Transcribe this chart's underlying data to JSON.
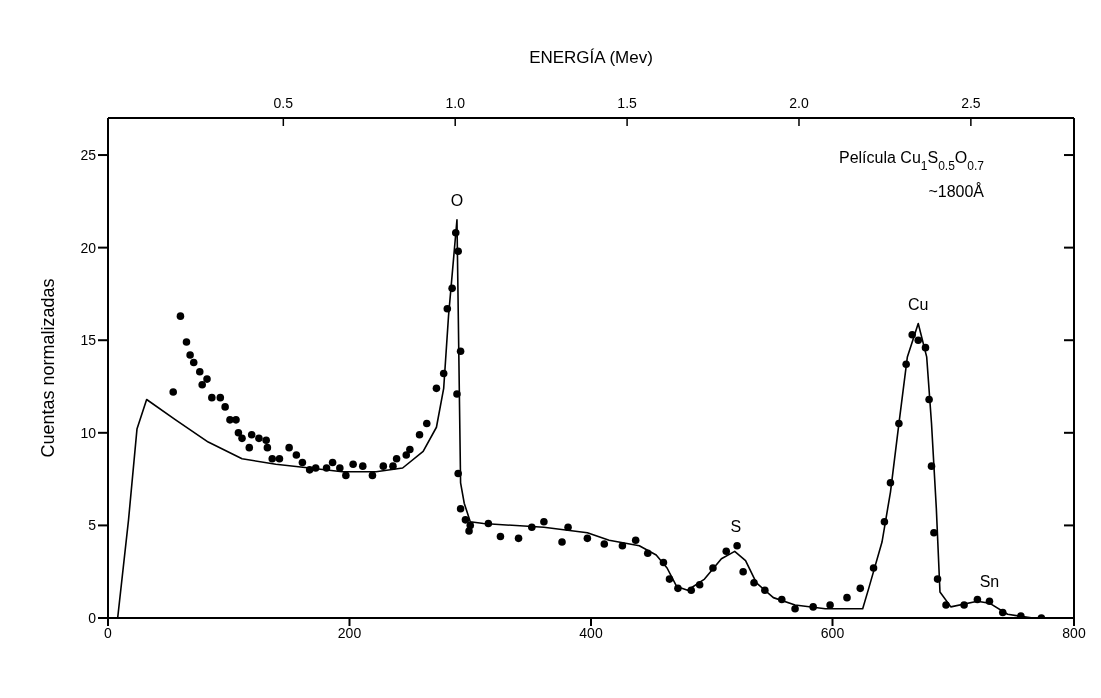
{
  "chart_data": {
    "type": "scatter",
    "ylabel": "Cuentas normalizadas",
    "x2label": "ENERGÍA (Mev)",
    "xlim": [
      0,
      800
    ],
    "xticks": [
      0,
      200,
      400,
      600,
      800
    ],
    "x2lim": [
      -0.01,
      2.8
    ],
    "x2ticks": [
      {
        "value": 0.5,
        "label": "0.5"
      },
      {
        "value": 1.0,
        "label": "1.0"
      },
      {
        "value": 1.5,
        "label": "1.5"
      },
      {
        "value": 2.0,
        "label": "2.0"
      },
      {
        "value": 2.5,
        "label": "2.5"
      }
    ],
    "ylim": [
      0,
      27
    ],
    "yticks": [
      0,
      5,
      10,
      15,
      20,
      25
    ],
    "series": [
      {
        "color": "#000000",
        "marker": "circle",
        "x": [
          54,
          60,
          65,
          68,
          71,
          76,
          78,
          82,
          86,
          93,
          97,
          101,
          106,
          108,
          111,
          117,
          119,
          125,
          131,
          132,
          136,
          142,
          150,
          156,
          161,
          167,
          172,
          181,
          186,
          192,
          197,
          203,
          211,
          219,
          228,
          236,
          239,
          247,
          250,
          258,
          264,
          272,
          278,
          281,
          285,
          288,
          289,
          290,
          292,
          290,
          292,
          296,
          299,
          300,
          315,
          325,
          340,
          351,
          361,
          376,
          381,
          397,
          411,
          426,
          437,
          447,
          460,
          465,
          472,
          483,
          490,
          501,
          512,
          521,
          526,
          535,
          544,
          558,
          569,
          584,
          598,
          612,
          623,
          634,
          643,
          648,
          655,
          661,
          666,
          671,
          677,
          680,
          682,
          684,
          687,
          694,
          709,
          720,
          730,
          741,
          756,
          773
        ],
        "values": [
          12.2,
          16.3,
          14.9,
          14.2,
          13.8,
          13.3,
          12.6,
          12.9,
          11.9,
          11.9,
          11.4,
          10.7,
          10.7,
          10.0,
          9.7,
          9.2,
          9.9,
          9.7,
          9.6,
          9.2,
          8.6,
          8.6,
          9.2,
          8.8,
          8.4,
          8.0,
          8.1,
          8.1,
          8.4,
          8.1,
          7.7,
          8.3,
          8.2,
          7.7,
          8.2,
          8.2,
          8.6,
          8.8,
          9.1,
          9.9,
          10.5,
          12.4,
          13.2,
          16.7,
          17.8,
          20.8,
          12.1,
          19.8,
          14.4,
          7.8,
          5.9,
          5.3,
          4.7,
          5.0,
          5.1,
          4.4,
          4.3,
          4.9,
          5.2,
          4.1,
          4.9,
          4.3,
          4.0,
          3.9,
          4.2,
          3.5,
          3.0,
          2.1,
          1.6,
          1.5,
          1.8,
          2.7,
          3.6,
          3.9,
          2.5,
          1.9,
          1.5,
          1.0,
          0.5,
          0.6,
          0.7,
          1.1,
          1.6,
          2.7,
          5.2,
          7.3,
          10.5,
          13.7,
          15.3,
          15.0,
          14.6,
          11.8,
          8.2,
          4.6,
          2.1,
          0.7,
          0.7,
          1.0,
          0.9,
          0.3,
          0.1,
          0
        ]
      },
      {
        "type": "line",
        "color": "#000000",
        "marker": "none",
        "line_style": "solid",
        "x": [
          8,
          17,
          24,
          32,
          56,
          83,
          111,
          139,
          167,
          194,
          222,
          244,
          261,
          272,
          278,
          282,
          289,
          292,
          295,
          300,
          311,
          361,
          397,
          415,
          440,
          454,
          463,
          471,
          480,
          494,
          508,
          519,
          528,
          537,
          551,
          569,
          594,
          625,
          630,
          641,
          648,
          655,
          662,
          671,
          678,
          682,
          686,
          689,
          698,
          720,
          730,
          745,
          766,
          797
        ],
        "values": [
          0,
          5.3,
          10.2,
          11.8,
          10.7,
          9.5,
          8.6,
          8.3,
          8.1,
          7.9,
          7.9,
          8.1,
          9.0,
          10.3,
          12.4,
          16.3,
          21.5,
          7.3,
          6.2,
          5.2,
          5.1,
          4.9,
          4.6,
          4.2,
          3.9,
          3.4,
          2.7,
          1.7,
          1.5,
          2.1,
          3.2,
          3.6,
          3.1,
          1.9,
          1.1,
          0.7,
          0.5,
          0.5,
          1.6,
          4.1,
          6.8,
          10.5,
          14.1,
          15.9,
          14.1,
          10.5,
          5.9,
          1.4,
          0.6,
          0.9,
          0.8,
          0.2,
          0,
          0
        ]
      }
    ],
    "annotations": [
      {
        "text": "O",
        "x": 289,
        "y": 21.5
      },
      {
        "text": "S",
        "x": 520,
        "y": 3.9
      },
      {
        "text": "Cu",
        "x": 671,
        "y": 15.9
      },
      {
        "text": "Sn",
        "x": 730,
        "y": 0.9
      },
      "Película  Cu$_{1}$S$_{0.5}$O$_{0.7}$",
      "~1800Å"
    ]
  }
}
